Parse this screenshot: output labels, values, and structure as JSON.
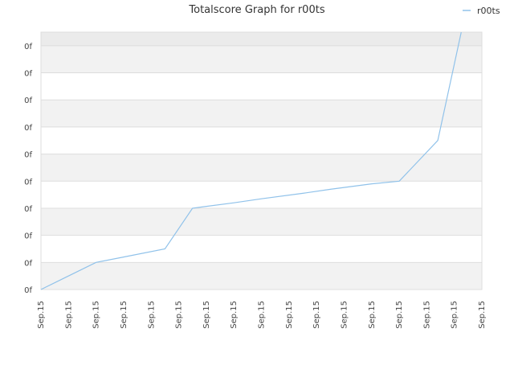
{
  "chart_data": {
    "type": "line",
    "title": "Totalscore Graph for r00ts",
    "xlabel": "",
    "ylabel": "",
    "grid": "horizontal",
    "legend_position": "top-right",
    "x_tick_labels": [
      "Sep.15",
      "Sep.15",
      "Sep.15",
      "Sep.15",
      "Sep.15",
      "Sep.15",
      "Sep.15",
      "Sep.15",
      "Sep.15",
      "Sep.15",
      "Sep.15",
      "Sep.15",
      "Sep.15",
      "Sep.15",
      "Sep.15",
      "Sep.15",
      "Sep.15"
    ],
    "y_tick_labels": [
      "0f",
      "0f",
      "0f",
      "0f",
      "0f",
      "0f",
      "0f",
      "0f",
      "0f",
      "0f"
    ],
    "ylim": [
      0,
      9.5
    ],
    "xlim": [
      0,
      16
    ],
    "series": [
      {
        "name": "r00ts",
        "color": "#90c2ea",
        "points": [
          [
            0,
            0
          ],
          [
            0.9,
            0.45
          ],
          [
            2,
            1
          ],
          [
            3,
            1.2
          ],
          [
            4.5,
            1.5
          ],
          [
            5.5,
            3
          ],
          [
            7,
            3.2
          ],
          [
            8,
            3.35
          ],
          [
            9.5,
            3.55
          ],
          [
            10.5,
            3.7
          ],
          [
            12,
            3.9
          ],
          [
            13,
            4
          ],
          [
            14.4,
            5.5
          ],
          [
            15.25,
            9.5
          ]
        ]
      }
    ],
    "colors": {
      "band_light": "#f2f2f2",
      "band_top": "#ebebeb",
      "grid": "#dddddd",
      "frame": "#dddddd"
    }
  }
}
